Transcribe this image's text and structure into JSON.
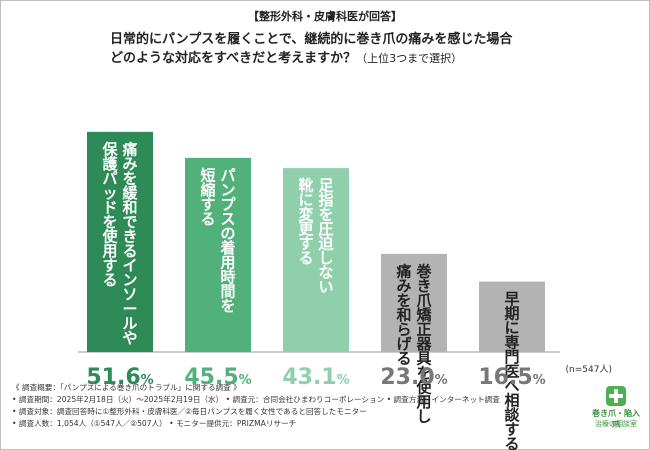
{
  "header": "【整形外科・皮膚科医が回答】",
  "question_line1": "日常的にパンプスを履くことで、継続的に巻き爪の痛みを感じた場合",
  "question_line2": "どのような対応をすべきだと考えますか？",
  "question_note": "（上位3つまで選択）",
  "sample_note": "(n=547人)",
  "chart_data": {
    "type": "bar",
    "categories": [
      "痛みを緩和できるインソールや保護パッドを使用する",
      "パンプスの着用時間を短縮する",
      "足指を圧迫しない靴に変更する",
      "巻き爪矯正器具を使用し痛みを和らげる",
      "早期に専門医へ相談する"
    ],
    "label_columns": [
      [
        "痛みを緩和できるインソールや",
        "保護パッドを使用する"
      ],
      [
        "パンプスの着用時間を",
        "短縮する"
      ],
      [
        "足指を圧迫しない",
        "靴に変更する"
      ],
      [
        "巻き爪矯正器具を使用し",
        "痛みを和らげる"
      ],
      [
        "早期に専門医へ相談する"
      ]
    ],
    "values": [
      51.6,
      45.5,
      43.1,
      23.0,
      16.5
    ],
    "value_labels": [
      "51.6",
      "45.5",
      "43.1",
      "23.0",
      "16.5"
    ],
    "unit": "%",
    "colors": [
      "#2e8b57",
      "#52b07a",
      "#8fcfac",
      "#b3b3b3",
      "#b3b3b3"
    ],
    "value_colors": [
      "#2e8b57",
      "#52b07a",
      "#8fcfac",
      "#777777",
      "#777777"
    ],
    "ylim": [
      0,
      60
    ],
    "title": "",
    "xlabel": "",
    "ylabel": ""
  },
  "footer": {
    "line1": "《 調査概要：「パンプスによる巻き爪のトラブル」に関する調査 》",
    "line2": "• 調査期間：2025年2月18日（火）〜2025年2月19日（水）  • 調査元：合同会社ひまわりコーポレーション  • 調査方法：インターネット調査",
    "line3": "• 調査対象：調査回答時に①整形外科・皮膚科医／②毎日パンプスを履く女性であると回答したモニター",
    "line4": "• 調査人数：1,054人（①547人／②507人）  • モニター提供元：PRIZMAリサーチ"
  },
  "logo": {
    "line1": "巻き爪・陥入爪",
    "line2": "治療の相談室"
  }
}
